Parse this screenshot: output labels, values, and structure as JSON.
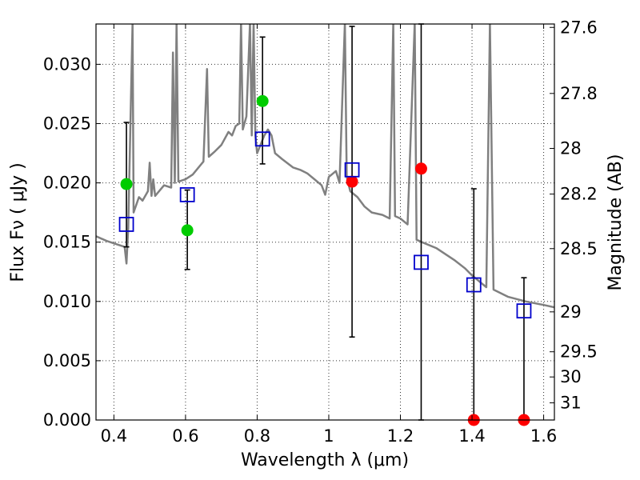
{
  "chart_data": {
    "type": "scatter",
    "xlabel": "Wavelength  λ (μm)",
    "ylabel_left": "Flux  Fν  ( μJy )",
    "ylabel_right": "Magnitude (AB)",
    "xlim": [
      0.35,
      1.63
    ],
    "ylim": [
      0.0,
      0.0334
    ],
    "grid": true,
    "x_ticks": [
      {
        "value": 0.4,
        "label": "0.4"
      },
      {
        "value": 0.6,
        "label": "0.6"
      },
      {
        "value": 0.8,
        "label": "0.8"
      },
      {
        "value": 1.0,
        "label": "1"
      },
      {
        "value": 1.2,
        "label": "1.2"
      },
      {
        "value": 1.4,
        "label": "1.4"
      },
      {
        "value": 1.6,
        "label": "1.6"
      }
    ],
    "y_ticks_left": [
      {
        "value": 0.0,
        "label": "0.000"
      },
      {
        "value": 0.005,
        "label": "0.005"
      },
      {
        "value": 0.01,
        "label": "0.010"
      },
      {
        "value": 0.015,
        "label": "0.015"
      },
      {
        "value": 0.02,
        "label": "0.020"
      },
      {
        "value": 0.025,
        "label": "0.025"
      },
      {
        "value": 0.03,
        "label": "0.030"
      }
    ],
    "y_ticks_right": [
      {
        "mag": 27.6,
        "label": "27.6"
      },
      {
        "mag": 27.8,
        "label": "27.8"
      },
      {
        "mag": 28.0,
        "label": "28"
      },
      {
        "mag": 28.2,
        "label": "28.2"
      },
      {
        "mag": 28.5,
        "label": "28.5"
      },
      {
        "mag": 29.0,
        "label": "29"
      },
      {
        "mag": 29.5,
        "label": "29.5"
      },
      {
        "mag": 30.0,
        "label": "30"
      },
      {
        "mag": 31.0,
        "label": "31"
      }
    ],
    "series": [
      {
        "kind": "model_spectrum",
        "color": "#808080",
        "points": [
          [
            0.35,
            0.0155
          ],
          [
            0.38,
            0.0151
          ],
          [
            0.41,
            0.0148
          ],
          [
            0.43,
            0.0146
          ],
          [
            0.435,
            0.0132
          ],
          [
            0.44,
            0.0162
          ],
          [
            0.452,
            0.0335
          ],
          [
            0.455,
            0.0175
          ],
          [
            0.47,
            0.0188
          ],
          [
            0.48,
            0.0185
          ],
          [
            0.495,
            0.0193
          ],
          [
            0.5,
            0.0217
          ],
          [
            0.505,
            0.0189
          ],
          [
            0.51,
            0.0203
          ],
          [
            0.515,
            0.0189
          ],
          [
            0.54,
            0.0198
          ],
          [
            0.56,
            0.0196
          ],
          [
            0.565,
            0.031
          ],
          [
            0.57,
            0.02
          ],
          [
            0.575,
            0.0335
          ],
          [
            0.58,
            0.0201
          ],
          [
            0.6,
            0.0203
          ],
          [
            0.62,
            0.0207
          ],
          [
            0.65,
            0.0218
          ],
          [
            0.66,
            0.0296
          ],
          [
            0.665,
            0.0222
          ],
          [
            0.68,
            0.0226
          ],
          [
            0.7,
            0.0232
          ],
          [
            0.72,
            0.0243
          ],
          [
            0.73,
            0.024
          ],
          [
            0.74,
            0.0248
          ],
          [
            0.75,
            0.025
          ],
          [
            0.755,
            0.0335
          ],
          [
            0.76,
            0.0245
          ],
          [
            0.77,
            0.0256
          ],
          [
            0.78,
            0.0335
          ],
          [
            0.785,
            0.024
          ],
          [
            0.79,
            0.0335
          ],
          [
            0.795,
            0.024
          ],
          [
            0.8,
            0.0225
          ],
          [
            0.82,
            0.024
          ],
          [
            0.83,
            0.0245
          ],
          [
            0.84,
            0.024
          ],
          [
            0.85,
            0.0225
          ],
          [
            0.87,
            0.022
          ],
          [
            0.9,
            0.0213
          ],
          [
            0.92,
            0.0211
          ],
          [
            0.94,
            0.0208
          ],
          [
            0.96,
            0.0203
          ],
          [
            0.98,
            0.0198
          ],
          [
            0.99,
            0.019
          ],
          [
            1.0,
            0.0205
          ],
          [
            1.02,
            0.021
          ],
          [
            1.03,
            0.02
          ],
          [
            1.045,
            0.0335
          ],
          [
            1.05,
            0.0205
          ],
          [
            1.06,
            0.0193
          ],
          [
            1.08,
            0.0188
          ],
          [
            1.1,
            0.018
          ],
          [
            1.12,
            0.0175
          ],
          [
            1.15,
            0.0173
          ],
          [
            1.17,
            0.017
          ],
          [
            1.18,
            0.0335
          ],
          [
            1.185,
            0.0172
          ],
          [
            1.2,
            0.017
          ],
          [
            1.22,
            0.0165
          ],
          [
            1.24,
            0.0335
          ],
          [
            1.245,
            0.0152
          ],
          [
            1.26,
            0.015
          ],
          [
            1.3,
            0.0145
          ],
          [
            1.35,
            0.0135
          ],
          [
            1.38,
            0.0128
          ],
          [
            1.4,
            0.0122
          ],
          [
            1.44,
            0.0112
          ],
          [
            1.45,
            0.0335
          ],
          [
            1.46,
            0.011
          ],
          [
            1.5,
            0.0104
          ],
          [
            1.55,
            0.01
          ],
          [
            1.6,
            0.0097
          ],
          [
            1.63,
            0.0095
          ]
        ]
      },
      {
        "kind": "observed",
        "color": "#00cc00",
        "marker": "circle",
        "points": [
          {
            "x": 0.435,
            "y": 0.0199,
            "err_lo": 0.0146,
            "err_hi": 0.0251
          },
          {
            "x": 0.605,
            "y": 0.016,
            "err_lo": 0.0127,
            "err_hi": 0.0194
          },
          {
            "x": 0.815,
            "y": 0.0269,
            "err_lo": 0.0216,
            "err_hi": 0.0323
          }
        ]
      },
      {
        "kind": "observed",
        "color": "#ff0000",
        "marker": "circle",
        "points": [
          {
            "x": 1.065,
            "y": 0.0201,
            "err_lo": 0.007,
            "err_hi": 0.0332
          },
          {
            "x": 1.258,
            "y": 0.0212,
            "err_lo": 0.0,
            "err_hi": 0.0334
          },
          {
            "x": 1.405,
            "y": 0.0,
            "err_lo": 0.0,
            "err_hi": 0.0195
          },
          {
            "x": 1.545,
            "y": 0.0,
            "err_lo": 0.0,
            "err_hi": 0.012
          }
        ]
      },
      {
        "kind": "model_bandpass",
        "color": "#0000cc",
        "marker": "open-square",
        "points": [
          {
            "x": 0.435,
            "y": 0.0165
          },
          {
            "x": 0.605,
            "y": 0.019
          },
          {
            "x": 0.815,
            "y": 0.0237
          },
          {
            "x": 1.065,
            "y": 0.0211
          },
          {
            "x": 1.258,
            "y": 0.0133
          },
          {
            "x": 1.405,
            "y": 0.0114
          },
          {
            "x": 1.545,
            "y": 0.0092
          }
        ]
      }
    ]
  }
}
